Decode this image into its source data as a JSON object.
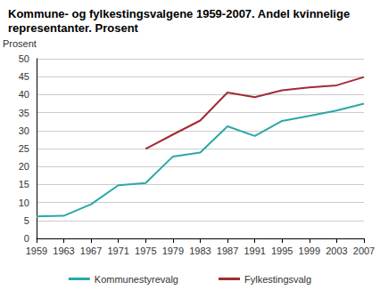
{
  "chart_data": {
    "type": "line",
    "title": "Kommune- og fylkestingsvalgene 1959-2007. Andel kvinnelige representanter. Prosent",
    "y_label": "Prosent",
    "categories": [
      "1959",
      "1963",
      "1967",
      "1971",
      "1975",
      "1979",
      "1983",
      "1987",
      "1991",
      "1995",
      "1999",
      "2003",
      "2007"
    ],
    "series": [
      {
        "name": "Kommunestyrevalg",
        "color": "#2aa8a6",
        "line_style": "solid",
        "values": [
          6.1,
          6.3,
          9.5,
          14.8,
          15.4,
          22.8,
          23.9,
          31.2,
          28.5,
          32.7,
          34.1,
          35.6,
          37.5
        ]
      },
      {
        "name": "Fylkestingsvalg",
        "color": "#a32a35",
        "line_style": "solid",
        "values": [
          null,
          null,
          null,
          null,
          24.9,
          28.9,
          32.8,
          40.6,
          39.3,
          41.2,
          42.0,
          42.6,
          44.9
        ]
      }
    ],
    "ylim": [
      0,
      50
    ],
    "yticks": [
      0,
      5,
      10,
      15,
      20,
      25,
      30,
      35,
      40,
      45,
      50
    ],
    "grid": true,
    "legend": "bottom"
  }
}
